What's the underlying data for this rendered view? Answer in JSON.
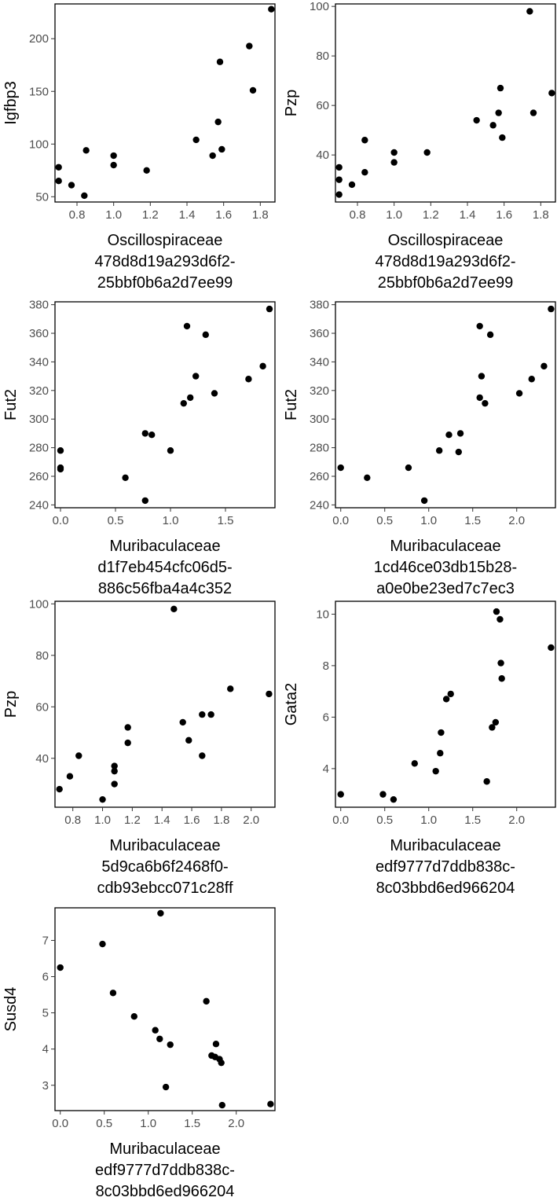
{
  "chart_data": [
    {
      "type": "scatter",
      "xlabel_lines": [
        "Oscillospiraceae",
        "478d8d19a293d6f2-",
        "25bbf0b6a2d7ee99"
      ],
      "ylabel": "Igfbp3",
      "xlim": [
        0.68,
        1.88
      ],
      "ylim": [
        45,
        233
      ],
      "xticks": [
        "0.8",
        "1.0",
        "1.2",
        "1.4",
        "1.6",
        "1.8"
      ],
      "yticks": [
        "50",
        "100",
        "150",
        "200"
      ],
      "x": [
        0.7,
        0.7,
        0.77,
        0.84,
        0.85,
        1.0,
        1.0,
        1.18,
        1.45,
        1.54,
        1.57,
        1.58,
        1.59,
        1.74,
        1.76,
        1.86
      ],
      "y": [
        78,
        65,
        61,
        51,
        94,
        89,
        80,
        75,
        104,
        89,
        121,
        178,
        95,
        193,
        151,
        228
      ]
    },
    {
      "type": "scatter",
      "xlabel_lines": [
        "Oscillospiraceae",
        "478d8d19a293d6f2-",
        "25bbf0b6a2d7ee99"
      ],
      "ylabel": "Pzp",
      "xlim": [
        0.68,
        1.88
      ],
      "ylim": [
        21,
        101
      ],
      "xticks": [
        "0.8",
        "1.0",
        "1.2",
        "1.4",
        "1.6",
        "1.8"
      ],
      "yticks": [
        "40",
        "60",
        "80",
        "100"
      ],
      "x": [
        0.7,
        0.7,
        0.7,
        0.77,
        0.84,
        0.84,
        1.0,
        1.0,
        1.18,
        1.45,
        1.54,
        1.57,
        1.58,
        1.59,
        1.74,
        1.76,
        1.86
      ],
      "y": [
        35,
        30,
        24,
        28,
        33,
        46,
        41,
        37,
        41,
        54,
        52,
        57,
        67,
        47,
        98,
        57,
        65
      ]
    },
    {
      "type": "scatter",
      "xlabel_lines": [
        "Muribaculaceae",
        "d1f7eb454cfc06d5-",
        "886c56fba4a4c352"
      ],
      "ylabel": "Fut2",
      "xlim": [
        -0.05,
        1.95
      ],
      "ylim": [
        238,
        382
      ],
      "xticks": [
        "0.0",
        "0.5",
        "1.0",
        "1.5"
      ],
      "yticks": [
        "240",
        "260",
        "280",
        "300",
        "320",
        "340",
        "360",
        "380"
      ],
      "x": [
        0.0,
        0.0,
        0.0,
        0.59,
        0.77,
        0.77,
        0.83,
        1.0,
        1.12,
        1.15,
        1.18,
        1.23,
        1.32,
        1.4,
        1.71,
        1.84,
        1.9
      ],
      "y": [
        278,
        266,
        265,
        259,
        243,
        290,
        289,
        278,
        311,
        365,
        315,
        330,
        359,
        318,
        328,
        337,
        377
      ]
    },
    {
      "type": "scatter",
      "xlabel_lines": [
        "Muribaculaceae",
        "1cd46ce03db15b28-",
        "a0e0be23ed7c7ec3"
      ],
      "ylabel": "Fut2",
      "xlim": [
        -0.06,
        2.44
      ],
      "ylim": [
        238,
        382
      ],
      "xticks": [
        "0.0",
        "0.5",
        "1.0",
        "1.5",
        "2.0"
      ],
      "yticks": [
        "240",
        "260",
        "280",
        "300",
        "320",
        "340",
        "360",
        "380"
      ],
      "x": [
        0.0,
        0.3,
        0.77,
        0.95,
        1.12,
        1.23,
        1.34,
        1.36,
        1.58,
        1.58,
        1.6,
        1.64,
        1.7,
        2.03,
        2.17,
        2.31,
        2.39
      ],
      "y": [
        266,
        259,
        266,
        243,
        278,
        289,
        277,
        290,
        365,
        315,
        330,
        311,
        359,
        318,
        328,
        337,
        377
      ]
    },
    {
      "type": "scatter",
      "xlabel_lines": [
        "Muribaculaceae",
        "5d9ca6b6f2468f0-",
        "cdb93ebcc071c28ff"
      ],
      "ylabel": "Pzp",
      "xlim": [
        0.68,
        2.16
      ],
      "ylim": [
        21,
        101
      ],
      "xticks": [
        "0.8",
        "1.0",
        "1.2",
        "1.4",
        "1.6",
        "1.8",
        "2.0"
      ],
      "yticks": [
        "40",
        "60",
        "80",
        "100"
      ],
      "x": [
        0.71,
        0.78,
        0.84,
        1.0,
        1.08,
        1.08,
        1.08,
        1.17,
        1.17,
        1.48,
        1.54,
        1.58,
        1.67,
        1.67,
        1.73,
        1.86,
        2.12
      ],
      "y": [
        28,
        33,
        41,
        24,
        30,
        35,
        37,
        46,
        52,
        98,
        54,
        47,
        57,
        41,
        57,
        67,
        65
      ]
    },
    {
      "type": "scatter",
      "xlabel_lines": [
        "Muribaculaceae",
        "edf9777d7ddb838c-",
        "8c03bbd6ed966204"
      ],
      "ylabel": "Gata2",
      "xlim": [
        -0.06,
        2.44
      ],
      "ylim": [
        2.5,
        10.5
      ],
      "xticks": [
        "0.0",
        "0.5",
        "1.0",
        "1.5",
        "2.0"
      ],
      "yticks": [
        "4",
        "6",
        "8",
        "10"
      ],
      "x": [
        0.0,
        0.48,
        0.6,
        0.84,
        1.08,
        1.13,
        1.14,
        1.2,
        1.25,
        1.66,
        1.72,
        1.76,
        1.77,
        1.81,
        1.82,
        1.83,
        2.39
      ],
      "y": [
        3.0,
        3.0,
        2.8,
        4.2,
        3.9,
        4.6,
        5.4,
        6.7,
        6.9,
        3.5,
        5.6,
        5.8,
        10.1,
        9.8,
        8.1,
        7.5,
        8.7
      ]
    },
    {
      "type": "scatter",
      "xlabel_lines": [
        "Muribaculaceae",
        "edf9777d7ddb838c-",
        "8c03bbd6ed966204"
      ],
      "ylabel": "Susd4",
      "xlim": [
        -0.06,
        2.44
      ],
      "ylim": [
        2.3,
        7.9
      ],
      "xticks": [
        "0.0",
        "0.5",
        "1.0",
        "1.5",
        "2.0"
      ],
      "yticks": [
        "3",
        "4",
        "5",
        "6",
        "7"
      ],
      "x": [
        0.0,
        0.48,
        0.6,
        0.84,
        1.08,
        1.13,
        1.14,
        1.2,
        1.25,
        1.66,
        1.72,
        1.76,
        1.77,
        1.81,
        1.83,
        1.84,
        2.39
      ],
      "y": [
        6.25,
        6.9,
        5.55,
        4.9,
        4.52,
        4.28,
        7.75,
        2.95,
        4.12,
        5.32,
        3.82,
        3.78,
        4.14,
        3.72,
        3.62,
        2.45,
        2.48
      ]
    }
  ]
}
